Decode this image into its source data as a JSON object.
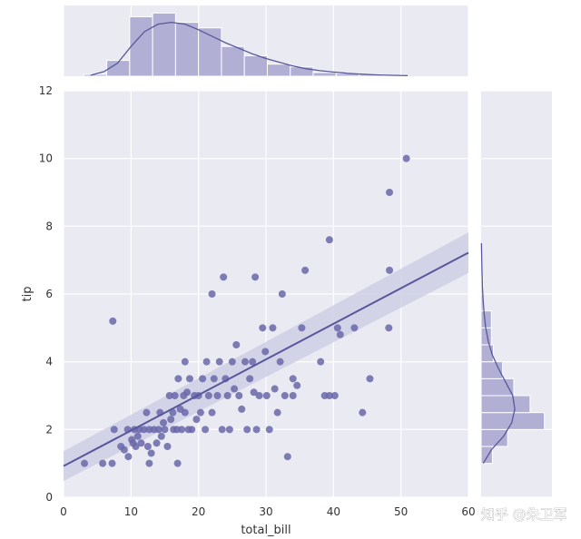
{
  "watermark": "知乎 @朱卫军",
  "colors": {
    "plot_bg": "#eaeaf2",
    "grid": "#ffffff",
    "points": "#6a67a8",
    "bars": "#b1b0d4",
    "bar_edge": "#ffffff",
    "line": "#58579a",
    "ci_band": "#cfcfe6"
  },
  "chart_data": [
    {
      "type": "scatter",
      "role": "joint",
      "xlabel": "total_bill",
      "ylabel": "tip",
      "xlim": [
        0,
        60
      ],
      "ylim": [
        0,
        12
      ],
      "xticks": [
        0,
        10,
        20,
        30,
        40,
        50,
        60
      ],
      "xtick_labels": [
        "0",
        "10",
        "20",
        "30",
        "40",
        "50",
        "60"
      ],
      "yticks": [
        0,
        2,
        4,
        6,
        8,
        10,
        12
      ],
      "ytick_labels": [
        "0",
        "2",
        "4",
        "6",
        "8",
        "10",
        "12"
      ],
      "grid": true,
      "points": [
        [
          3.1,
          1.0
        ],
        [
          5.8,
          1.0
        ],
        [
          7.2,
          1.0
        ],
        [
          9.6,
          1.2
        ],
        [
          12.7,
          1.0
        ],
        [
          16.9,
          1.0
        ],
        [
          7.3,
          5.2
        ],
        [
          7.5,
          2.0
        ],
        [
          8.5,
          1.5
        ],
        [
          9.0,
          1.4
        ],
        [
          9.5,
          2.0
        ],
        [
          10.1,
          1.7
        ],
        [
          10.3,
          1.6
        ],
        [
          10.5,
          2.0
        ],
        [
          10.7,
          1.5
        ],
        [
          11.0,
          1.8
        ],
        [
          11.2,
          2.0
        ],
        [
          11.5,
          1.6
        ],
        [
          11.9,
          2.0
        ],
        [
          12.3,
          2.5
        ],
        [
          12.5,
          1.5
        ],
        [
          12.7,
          2.0
        ],
        [
          13.0,
          1.3
        ],
        [
          13.4,
          2.0
        ],
        [
          13.8,
          1.6
        ],
        [
          14.1,
          2.0
        ],
        [
          14.3,
          2.5
        ],
        [
          14.5,
          1.8
        ],
        [
          14.8,
          2.2
        ],
        [
          15.0,
          2.0
        ],
        [
          15.4,
          1.5
        ],
        [
          15.7,
          3.0
        ],
        [
          15.9,
          2.3
        ],
        [
          16.2,
          2.5
        ],
        [
          16.3,
          2.0
        ],
        [
          16.5,
          3.0
        ],
        [
          16.8,
          2.0
        ],
        [
          17.0,
          3.5
        ],
        [
          17.3,
          2.6
        ],
        [
          17.5,
          2.0
        ],
        [
          17.8,
          3.0
        ],
        [
          18.0,
          2.5
        ],
        [
          18.3,
          3.1
        ],
        [
          18.5,
          2.0
        ],
        [
          18.7,
          3.5
        ],
        [
          19.0,
          2.0
        ],
        [
          19.4,
          3.0
        ],
        [
          19.7,
          2.3
        ],
        [
          20.0,
          3.0
        ],
        [
          20.3,
          2.5
        ],
        [
          20.6,
          3.5
        ],
        [
          21.0,
          2.0
        ],
        [
          21.2,
          4.0
        ],
        [
          21.5,
          3.0
        ],
        [
          22.0,
          2.5
        ],
        [
          22.3,
          3.5
        ],
        [
          22.8,
          3.0
        ],
        [
          23.1,
          4.0
        ],
        [
          23.5,
          2.0
        ],
        [
          24.0,
          3.5
        ],
        [
          24.3,
          3.0
        ],
        [
          24.6,
          2.0
        ],
        [
          25.0,
          4.0
        ],
        [
          25.3,
          3.2
        ],
        [
          25.6,
          4.5
        ],
        [
          26.0,
          3.0
        ],
        [
          26.4,
          2.6
        ],
        [
          26.9,
          4.0
        ],
        [
          27.2,
          2.0
        ],
        [
          27.6,
          3.5
        ],
        [
          28.0,
          4.0
        ],
        [
          28.2,
          3.1
        ],
        [
          28.6,
          2.0
        ],
        [
          29.0,
          3.0
        ],
        [
          29.5,
          5.0
        ],
        [
          29.9,
          4.3
        ],
        [
          30.1,
          3.0
        ],
        [
          30.5,
          2.0
        ],
        [
          31.0,
          5.0
        ],
        [
          31.3,
          3.2
        ],
        [
          31.7,
          2.5
        ],
        [
          32.1,
          4.0
        ],
        [
          32.4,
          6.0
        ],
        [
          32.8,
          3.0
        ],
        [
          33.2,
          1.2
        ],
        [
          34.0,
          3.5
        ],
        [
          34.6,
          3.3
        ],
        [
          35.3,
          5.0
        ],
        [
          35.8,
          6.7
        ],
        [
          38.1,
          4.0
        ],
        [
          38.7,
          3.0
        ],
        [
          39.4,
          3.0
        ],
        [
          40.2,
          3.0
        ],
        [
          40.6,
          5.0
        ],
        [
          41.0,
          4.8
        ],
        [
          43.1,
          5.0
        ],
        [
          44.3,
          2.5
        ],
        [
          45.4,
          3.5
        ],
        [
          48.3,
          6.7
        ],
        [
          48.3,
          9.0
        ],
        [
          48.2,
          5.0
        ],
        [
          50.8,
          10.0
        ],
        [
          23.7,
          6.5
        ],
        [
          28.4,
          6.5
        ],
        [
          39.4,
          7.6
        ],
        [
          22.0,
          6.0
        ],
        [
          34.0,
          3.0
        ],
        [
          18.0,
          4.0
        ]
      ],
      "regression": {
        "x": [
          0,
          60
        ],
        "y": [
          0.92,
          7.22
        ],
        "ci_lower": [
          0.48,
          6.62
        ],
        "ci_upper": [
          1.36,
          7.82
        ]
      }
    },
    {
      "type": "bar",
      "role": "marginal-x",
      "bins": [
        [
          3,
          6.4
        ],
        [
          6.4,
          9.8
        ],
        [
          9.8,
          13.2
        ],
        [
          13.2,
          16.6
        ],
        [
          16.6,
          20.0
        ],
        [
          20.0,
          23.4
        ],
        [
          23.4,
          26.8
        ],
        [
          26.8,
          30.2
        ],
        [
          30.2,
          33.6
        ],
        [
          33.6,
          37.0
        ],
        [
          37.0,
          40.4
        ],
        [
          40.4,
          43.8
        ],
        [
          43.8,
          47.2
        ],
        [
          47.2,
          50.6
        ]
      ],
      "counts": [
        2,
        17,
        64,
        68,
        58,
        52,
        32,
        22,
        13,
        10,
        4,
        3,
        2,
        1
      ],
      "kde": [
        [
          4,
          1
        ],
        [
          6,
          5
        ],
        [
          8,
          14
        ],
        [
          10,
          32
        ],
        [
          12,
          48
        ],
        [
          14,
          56
        ],
        [
          16,
          58
        ],
        [
          18,
          56
        ],
        [
          20,
          50
        ],
        [
          22,
          43
        ],
        [
          24,
          36
        ],
        [
          26,
          30
        ],
        [
          28,
          24
        ],
        [
          30,
          19
        ],
        [
          32,
          15
        ],
        [
          34,
          11
        ],
        [
          36,
          8
        ],
        [
          38,
          6
        ],
        [
          40,
          4.5
        ],
        [
          42,
          3.2
        ],
        [
          44,
          2.3
        ],
        [
          46,
          1.6
        ],
        [
          48,
          1.1
        ],
        [
          51,
          0.6
        ]
      ]
    },
    {
      "type": "bar",
      "role": "marginal-y",
      "orientation": "horizontal",
      "bins": [
        [
          1.0,
          1.5
        ],
        [
          1.5,
          2.0
        ],
        [
          2.0,
          2.5
        ],
        [
          2.5,
          3.0
        ],
        [
          3.0,
          3.5
        ],
        [
          3.5,
          4.0
        ],
        [
          4.0,
          4.5
        ],
        [
          4.5,
          5.0
        ],
        [
          5.0,
          5.5
        ],
        [
          5.5,
          6.0
        ],
        [
          6.0,
          6.5
        ],
        [
          6.5,
          7.0
        ]
      ],
      "counts": [
        11,
        26,
        62,
        48,
        32,
        21,
        12,
        10,
        10,
        2,
        2,
        1
      ],
      "kde": [
        [
          1.0,
          2
        ],
        [
          1.4,
          10
        ],
        [
          1.8,
          22
        ],
        [
          2.2,
          30
        ],
        [
          2.6,
          33
        ],
        [
          3.0,
          31
        ],
        [
          3.4,
          24
        ],
        [
          3.8,
          17
        ],
        [
          4.2,
          11
        ],
        [
          4.6,
          7
        ],
        [
          5.0,
          4.5
        ],
        [
          5.4,
          3
        ],
        [
          5.8,
          2
        ],
        [
          6.2,
          1.3
        ],
        [
          6.6,
          0.9
        ],
        [
          7.0,
          0.6
        ],
        [
          7.5,
          0.3
        ]
      ]
    }
  ]
}
